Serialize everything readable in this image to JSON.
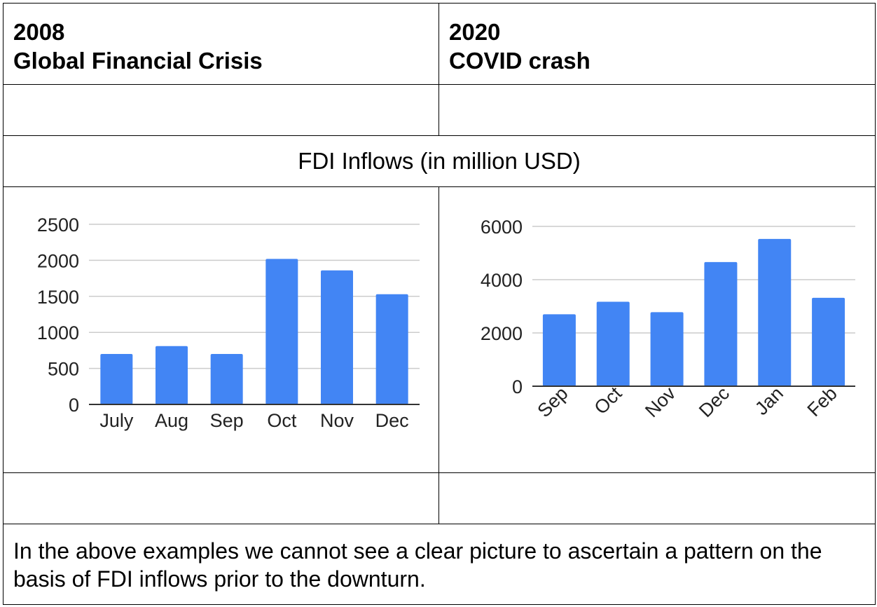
{
  "header": {
    "left_year": "2008",
    "left_event": "Global Financial Crisis",
    "right_year": "2020",
    "right_event": "COVID crash"
  },
  "section_title": "FDI Inflows (in million USD)",
  "footer_text": "In the above examples we cannot see a clear picture to ascertain a pattern on the basis of FDI inflows prior to the downturn.",
  "colors": {
    "bar": "#4285f4",
    "grid": "#cccccc",
    "axis": "#333333"
  },
  "chart_data": [
    {
      "type": "bar",
      "categories": [
        "July",
        "Aug",
        "Sep",
        "Oct",
        "Nov",
        "Dec"
      ],
      "values": [
        700,
        810,
        700,
        2020,
        1860,
        1530
      ],
      "yticks": [
        0,
        500,
        1000,
        1500,
        2000,
        2500
      ],
      "ylim": [
        0,
        2500
      ],
      "title": "",
      "xlabel": "",
      "ylabel": "",
      "grid": true,
      "xlabel_rotation": 0
    },
    {
      "type": "bar",
      "categories": [
        "Sep",
        "Oct",
        "Nov",
        "Dec",
        "Jan",
        "Feb"
      ],
      "values": [
        2700,
        3170,
        2780,
        4660,
        5530,
        3320
      ],
      "yticks": [
        0,
        2000,
        4000,
        6000
      ],
      "ylim": [
        0,
        6000
      ],
      "title": "",
      "xlabel": "",
      "ylabel": "",
      "grid": true,
      "xlabel_rotation": -45
    }
  ]
}
